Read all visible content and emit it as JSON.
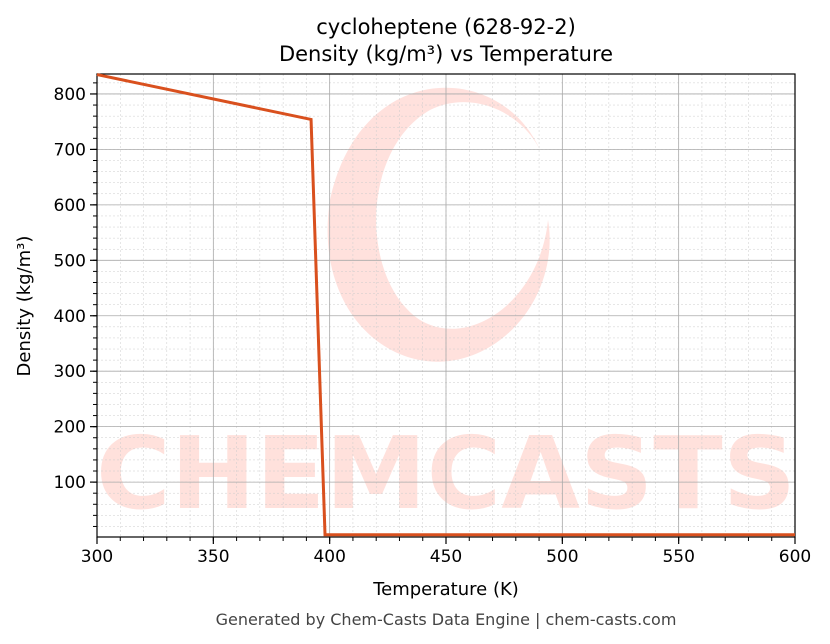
{
  "chart_data": {
    "type": "line",
    "title": "cycloheptene (628-92-2)",
    "subtitle": "Density (kg/m³) vs Temperature",
    "xlabel": "Temperature (K)",
    "ylabel": "Density (kg/m³)",
    "xlim": [
      300,
      600
    ],
    "ylim": [
      1,
      836
    ],
    "xticks": [
      300,
      350,
      400,
      450,
      500,
      550,
      600
    ],
    "yticks": [
      100,
      200,
      300,
      400,
      500,
      600,
      700,
      800
    ],
    "grid": true,
    "series": [
      {
        "color": "#d9501e",
        "x": [
          300,
          392,
          398,
          600
        ],
        "y": [
          835,
          754,
          5,
          5
        ]
      }
    ]
  },
  "watermark": "CHEMCASTS",
  "footer": "Generated by Chem-Casts Data Engine | chem-casts.com"
}
